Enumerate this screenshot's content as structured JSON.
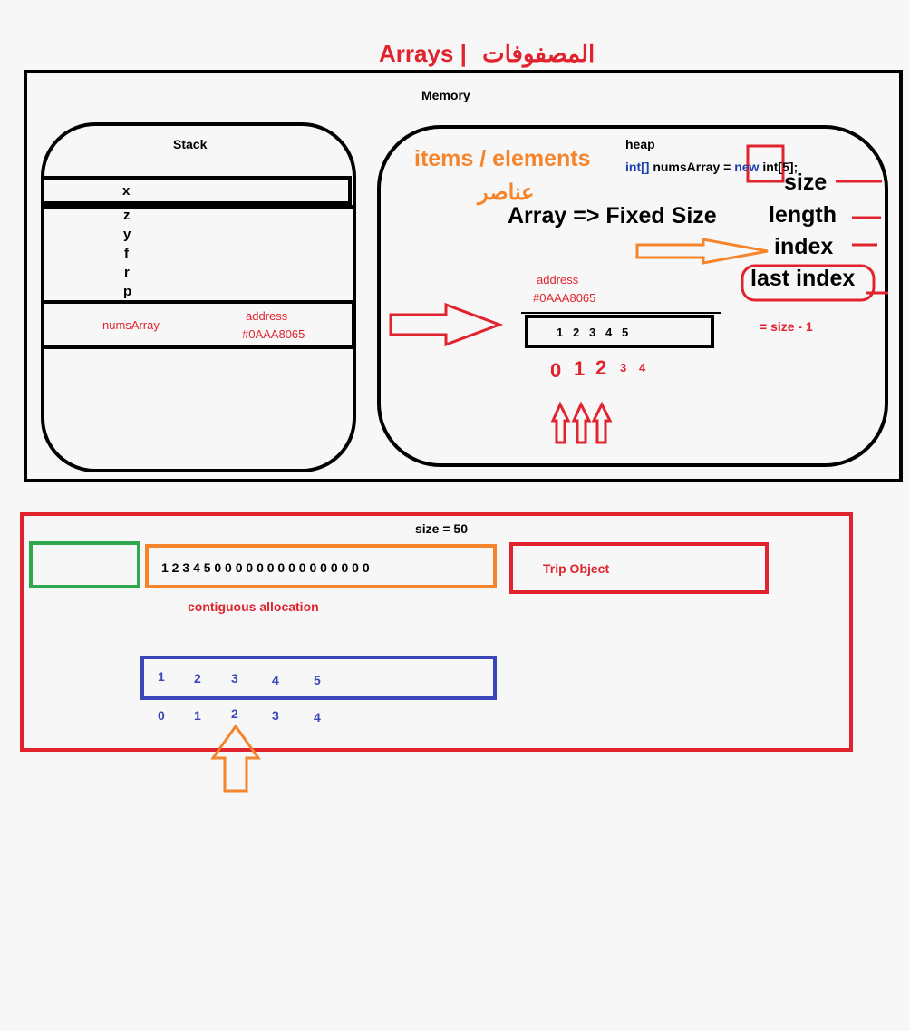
{
  "title": {
    "text": "Arrays |",
    "arabic": "المصفوفات"
  },
  "memory": {
    "label": "Memory"
  },
  "stack": {
    "label": "Stack",
    "vars": [
      "x",
      "z",
      "y",
      "f",
      "r",
      "p"
    ],
    "ref_name": "numsArray",
    "ref_address_label": "address",
    "ref_address_value": "#0AAA8065"
  },
  "heap": {
    "label": "heap",
    "code": {
      "type": "int[]",
      "name": " numsArray = ",
      "keyword": "new",
      "ctor": " int[5];"
    },
    "items_label": "items / elements",
    "items_arabic": "عناصر",
    "fixed_size": "Array => Fixed Size",
    "terms": [
      "size",
      "length",
      "index",
      "last index"
    ],
    "last_index_formula": "= size - 1",
    "array_address_label": "address",
    "array_address_value": "#0AAA8065",
    "array_values": [
      "1",
      "2",
      "3",
      "4",
      "5"
    ],
    "indices": [
      "0",
      "1",
      "2",
      "3",
      "4"
    ]
  },
  "bottom": {
    "size_label": "size = 50",
    "contiguous_values": "1 2 3 4 5 0 0 0 0 0 0 0 0 0 0 0 0 0 0 0",
    "contiguous_label": "contiguous allocation",
    "trip_label": "Trip Object",
    "values": [
      "1",
      "2",
      "3",
      "4",
      "5"
    ],
    "indices": [
      "0",
      "1",
      "2",
      "3",
      "4"
    ]
  },
  "colors": {
    "red": "#e0232e",
    "orange": "#f5842a",
    "green": "#2fa84f",
    "blue": "#3b47b8",
    "code_blue": "#1a3fa8"
  }
}
